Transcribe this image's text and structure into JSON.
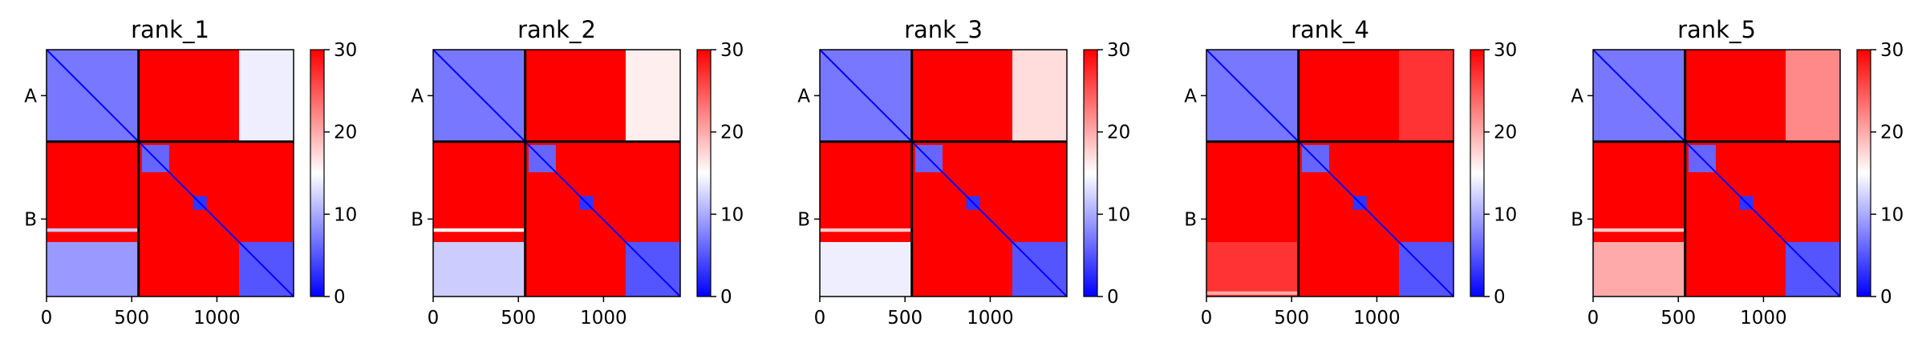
{
  "figure": {
    "colormap": {
      "name": "bwr",
      "low": "#0000ff",
      "mid": "#ffffff",
      "high": "#ff0000"
    },
    "colorbar": {
      "min": 0,
      "max": 30,
      "ticks": [
        0,
        10,
        20,
        30
      ]
    }
  },
  "chart_data": [
    {
      "type": "heatmap",
      "title": "rank_1",
      "xlabel": "",
      "ylabel": "",
      "xlim": [
        0,
        1450
      ],
      "x_ticks": [
        0,
        500,
        1000
      ],
      "y_tick_labels": [
        "A",
        "B"
      ],
      "chain_boundary": 540,
      "chain_lengths": {
        "A": 540,
        "B": 910
      },
      "matrix": "predicted aligned error",
      "value_range": [
        0,
        30
      ],
      "regions": [
        {
          "rows": "A",
          "cols": "A",
          "value": 7
        },
        {
          "rows": "A",
          "cols": "B",
          "value": 30
        },
        {
          "rows": "B",
          "cols": "A",
          "value": 30
        },
        {
          "rows": "B",
          "cols": "B",
          "value": 30
        },
        {
          "rows": [
            560,
            720
          ],
          "cols": [
            560,
            720
          ],
          "value": 6
        },
        {
          "rows": [
            860,
            940
          ],
          "cols": [
            860,
            940
          ],
          "value": 3
        },
        {
          "rows": [
            1130,
            1450
          ],
          "cols": [
            1130,
            1450
          ],
          "value": 5
        },
        {
          "rows": [
            0,
            540
          ],
          "cols": [
            1130,
            1450
          ],
          "value": 14
        },
        {
          "rows": [
            1130,
            1450
          ],
          "cols": [
            0,
            540
          ],
          "value": 9
        },
        {
          "rows": [
            1050,
            1070
          ],
          "cols": [
            0,
            540
          ],
          "value": 12
        }
      ],
      "grid": false,
      "legend": "colorbar-right"
    },
    {
      "type": "heatmap",
      "title": "rank_2",
      "xlabel": "",
      "ylabel": "",
      "xlim": [
        0,
        1450
      ],
      "x_ticks": [
        0,
        500,
        1000
      ],
      "y_tick_labels": [
        "A",
        "B"
      ],
      "chain_boundary": 540,
      "chain_lengths": {
        "A": 540,
        "B": 910
      },
      "matrix": "predicted aligned error",
      "value_range": [
        0,
        30
      ],
      "regions": [
        {
          "rows": "A",
          "cols": "A",
          "value": 7
        },
        {
          "rows": "A",
          "cols": "B",
          "value": 30
        },
        {
          "rows": "B",
          "cols": "A",
          "value": 30
        },
        {
          "rows": "B",
          "cols": "B",
          "value": 30
        },
        {
          "rows": [
            560,
            720
          ],
          "cols": [
            560,
            720
          ],
          "value": 6
        },
        {
          "rows": [
            860,
            940
          ],
          "cols": [
            860,
            940
          ],
          "value": 3
        },
        {
          "rows": [
            1130,
            1450
          ],
          "cols": [
            1130,
            1450
          ],
          "value": 5
        },
        {
          "rows": [
            0,
            540
          ],
          "cols": [
            1130,
            1450
          ],
          "value": 16
        },
        {
          "rows": [
            1130,
            1450
          ],
          "cols": [
            0,
            540
          ],
          "value": 12
        },
        {
          "rows": [
            1050,
            1070
          ],
          "cols": [
            0,
            540
          ],
          "value": 15
        }
      ],
      "grid": false,
      "legend": "colorbar-right"
    },
    {
      "type": "heatmap",
      "title": "rank_3",
      "xlabel": "",
      "ylabel": "",
      "xlim": [
        0,
        1450
      ],
      "x_ticks": [
        0,
        500,
        1000
      ],
      "y_tick_labels": [
        "A",
        "B"
      ],
      "chain_boundary": 540,
      "chain_lengths": {
        "A": 540,
        "B": 910
      },
      "matrix": "predicted aligned error",
      "value_range": [
        0,
        30
      ],
      "regions": [
        {
          "rows": "A",
          "cols": "A",
          "value": 7
        },
        {
          "rows": "A",
          "cols": "B",
          "value": 30
        },
        {
          "rows": "B",
          "cols": "A",
          "value": 30
        },
        {
          "rows": "B",
          "cols": "B",
          "value": 30
        },
        {
          "rows": [
            560,
            720
          ],
          "cols": [
            560,
            720
          ],
          "value": 6
        },
        {
          "rows": [
            860,
            940
          ],
          "cols": [
            860,
            940
          ],
          "value": 3
        },
        {
          "rows": [
            1130,
            1450
          ],
          "cols": [
            1130,
            1450
          ],
          "value": 5
        },
        {
          "rows": [
            0,
            540
          ],
          "cols": [
            1130,
            1450
          ],
          "value": 17
        },
        {
          "rows": [
            1130,
            1450
          ],
          "cols": [
            0,
            540
          ],
          "value": 14
        },
        {
          "rows": [
            1050,
            1070
          ],
          "cols": [
            0,
            540
          ],
          "value": 18
        }
      ],
      "grid": false,
      "legend": "colorbar-right"
    },
    {
      "type": "heatmap",
      "title": "rank_4",
      "xlabel": "",
      "ylabel": "",
      "xlim": [
        0,
        1450
      ],
      "x_ticks": [
        0,
        500,
        1000
      ],
      "y_tick_labels": [
        "A",
        "B"
      ],
      "chain_boundary": 540,
      "chain_lengths": {
        "A": 540,
        "B": 910
      },
      "matrix": "predicted aligned error",
      "value_range": [
        0,
        30
      ],
      "regions": [
        {
          "rows": "A",
          "cols": "A",
          "value": 7
        },
        {
          "rows": "A",
          "cols": "B",
          "value": 30
        },
        {
          "rows": "B",
          "cols": "A",
          "value": 30
        },
        {
          "rows": "B",
          "cols": "B",
          "value": 30
        },
        {
          "rows": [
            560,
            720
          ],
          "cols": [
            560,
            720
          ],
          "value": 6
        },
        {
          "rows": [
            860,
            940
          ],
          "cols": [
            860,
            940
          ],
          "value": 3
        },
        {
          "rows": [
            1130,
            1450
          ],
          "cols": [
            1130,
            1450
          ],
          "value": 5
        },
        {
          "rows": [
            0,
            540
          ],
          "cols": [
            1130,
            1450
          ],
          "value": 27
        },
        {
          "rows": [
            1130,
            1450
          ],
          "cols": [
            0,
            540
          ],
          "value": 27
        },
        {
          "rows": [
            1420,
            1440
          ],
          "cols": [
            0,
            540
          ],
          "value": 20
        }
      ],
      "grid": false,
      "legend": "colorbar-right"
    },
    {
      "type": "heatmap",
      "title": "rank_5",
      "xlabel": "",
      "ylabel": "",
      "xlim": [
        0,
        1450
      ],
      "x_ticks": [
        0,
        500,
        1000
      ],
      "y_tick_labels": [
        "A",
        "B"
      ],
      "chain_boundary": 540,
      "chain_lengths": {
        "A": 540,
        "B": 910
      },
      "matrix": "predicted aligned error",
      "value_range": [
        0,
        30
      ],
      "regions": [
        {
          "rows": "A",
          "cols": "A",
          "value": 7
        },
        {
          "rows": "A",
          "cols": "B",
          "value": 30
        },
        {
          "rows": "B",
          "cols": "A",
          "value": 30
        },
        {
          "rows": "B",
          "cols": "B",
          "value": 30
        },
        {
          "rows": [
            560,
            720
          ],
          "cols": [
            560,
            720
          ],
          "value": 6
        },
        {
          "rows": [
            860,
            940
          ],
          "cols": [
            860,
            940
          ],
          "value": 3
        },
        {
          "rows": [
            1130,
            1450
          ],
          "cols": [
            1130,
            1450
          ],
          "value": 5
        },
        {
          "rows": [
            0,
            540
          ],
          "cols": [
            1130,
            1450
          ],
          "value": 22
        },
        {
          "rows": [
            1130,
            1450
          ],
          "cols": [
            0,
            540
          ],
          "value": 20
        },
        {
          "rows": [
            1050,
            1070
          ],
          "cols": [
            0,
            540
          ],
          "value": 18
        }
      ],
      "grid": false,
      "legend": "colorbar-right"
    }
  ]
}
